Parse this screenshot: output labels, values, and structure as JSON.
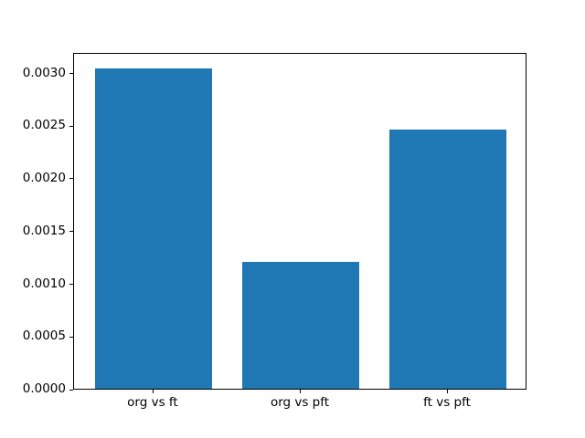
{
  "figure": {
    "background": "#ffffff",
    "plot_background": "#ffffff",
    "spine_color": "#000000",
    "tick_color": "#000000"
  },
  "chart_data": {
    "type": "bar",
    "title": "",
    "xlabel": "",
    "ylabel": "",
    "categories": [
      "org vs ft",
      "org vs pft",
      "ft vs pft"
    ],
    "values": [
      0.00304,
      0.0012,
      0.00246
    ],
    "bar_color": "#1f77b4",
    "bar_width": 0.8,
    "xlim": [
      -0.54,
      2.54
    ],
    "ylim": [
      0,
      0.003194
    ],
    "ytick_values": [
      0.0,
      0.0005,
      0.001,
      0.0015,
      0.002,
      0.0025,
      0.003
    ],
    "ytick_labels": [
      "0.0000",
      "0.0005",
      "0.0010",
      "0.0015",
      "0.0020",
      "0.0025",
      "0.0030"
    ],
    "grid": false,
    "legend": null
  }
}
